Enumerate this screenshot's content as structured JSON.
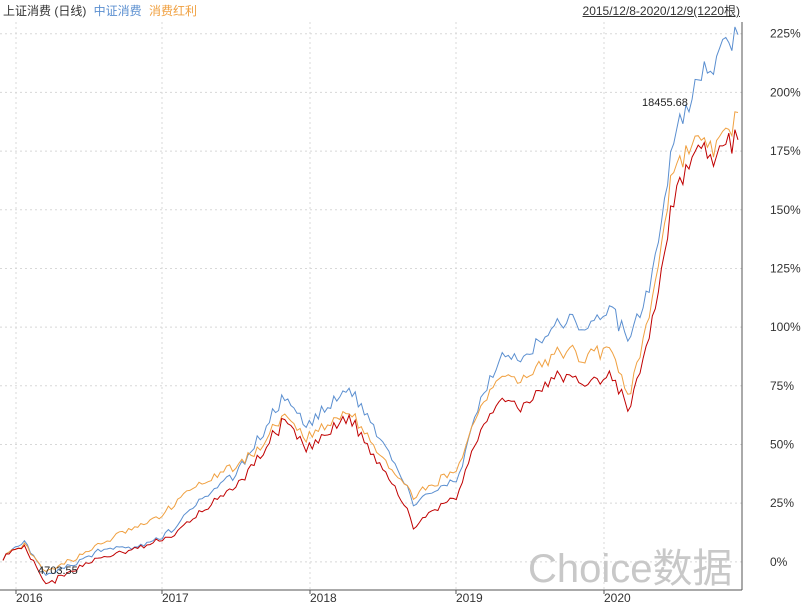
{
  "header": {
    "index_name": "上证消费 (日线)",
    "series_1": "中证消费",
    "series_2": "消费红利",
    "date_range": "2015/12/8-2020/12/9(1220根)"
  },
  "watermark": "Choice数据",
  "annotations": {
    "high": "18455.68",
    "low": "4703.55"
  },
  "colors": {
    "上证消费": "#c00000",
    "中证消费": "#5b8fd0",
    "消费红利": "#f0a040",
    "grid": "#d8d8d8",
    "axis": "#555555"
  },
  "chart_data": {
    "type": "line",
    "title": "",
    "x_axis": {
      "tick_labels": [
        "2016",
        "2017",
        "2018",
        "2019",
        "2020"
      ]
    },
    "y_axis": {
      "position": "right",
      "ylim": [
        -12,
        230
      ],
      "tick_values": [
        0,
        25,
        50,
        75,
        100,
        125,
        150,
        175,
        200,
        225
      ],
      "tick_labels": [
        "0%",
        "25%",
        "50%",
        "75%",
        "100%",
        "125%",
        "150%",
        "175%",
        "200%",
        "225%"
      ]
    },
    "grid": true,
    "x": [
      "2015-12",
      "2016-01",
      "2016-02",
      "2016-04",
      "2016-06",
      "2016-08",
      "2016-10",
      "2017-01",
      "2017-03",
      "2017-05",
      "2017-07",
      "2017-09",
      "2017-11",
      "2018-01",
      "2018-02",
      "2018-04",
      "2018-05",
      "2018-06",
      "2018-08",
      "2018-10",
      "2018-11",
      "2019-01",
      "2019-03",
      "2019-04",
      "2019-06",
      "2019-08",
      "2019-10",
      "2019-12",
      "2020-02",
      "2020-03",
      "2020-05",
      "2020-07",
      "2020-08",
      "2020-10",
      "2020-12"
    ],
    "series": [
      {
        "name": "中证消费",
        "values": [
          2,
          8,
          -6,
          -2,
          3,
          6,
          6,
          9,
          15,
          25,
          32,
          40,
          55,
          70,
          58,
          65,
          74,
          60,
          45,
          25,
          30,
          35,
          68,
          88,
          85,
          95,
          103,
          100,
          108,
          95,
          120,
          178,
          202,
          212,
          225
        ]
      },
      {
        "name": "消费红利",
        "values": [
          2,
          7,
          -5,
          0,
          5,
          10,
          14,
          18,
          25,
          33,
          37,
          42,
          50,
          62,
          52,
          58,
          64,
          52,
          40,
          28,
          33,
          40,
          65,
          80,
          77,
          85,
          90,
          87,
          92,
          70,
          110,
          168,
          180,
          175,
          190
        ]
      },
      {
        "name": "上证消费",
        "values": [
          2,
          6,
          -10,
          -5,
          0,
          3,
          5,
          8,
          12,
          20,
          27,
          34,
          47,
          60,
          48,
          54,
          62,
          47,
          35,
          15,
          22,
          28,
          55,
          70,
          65,
          75,
          80,
          75,
          80,
          65,
          100,
          155,
          175,
          172,
          182
        ]
      }
    ]
  }
}
